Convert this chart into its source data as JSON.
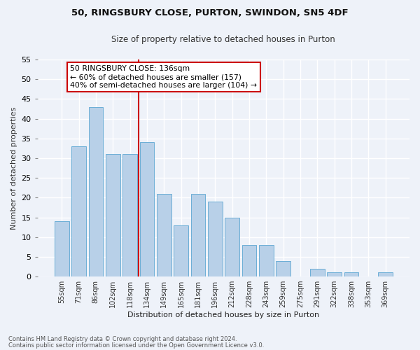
{
  "title1": "50, RINGSBURY CLOSE, PURTON, SWINDON, SN5 4DF",
  "title2": "Size of property relative to detached houses in Purton",
  "xlabel": "Distribution of detached houses by size in Purton",
  "ylabel": "Number of detached properties",
  "categories": [
    "55sqm",
    "71sqm",
    "86sqm",
    "102sqm",
    "118sqm",
    "134sqm",
    "149sqm",
    "165sqm",
    "181sqm",
    "196sqm",
    "212sqm",
    "228sqm",
    "243sqm",
    "259sqm",
    "275sqm",
    "291sqm",
    "322sqm",
    "338sqm",
    "353sqm",
    "369sqm"
  ],
  "values": [
    14,
    33,
    43,
    31,
    31,
    34,
    21,
    13,
    21,
    19,
    15,
    8,
    8,
    4,
    0,
    2,
    1,
    1,
    0,
    1
  ],
  "bar_color": "#b8d0e8",
  "bar_edge_color": "#6baed6",
  "vline_color": "#cc0000",
  "vline_pos": 5,
  "annotation_text": "50 RINGSBURY CLOSE: 136sqm\n← 60% of detached houses are smaller (157)\n40% of semi-detached houses are larger (104) →",
  "annotation_box_color": "#ffffff",
  "annotation_box_edge": "#cc0000",
  "ylim": [
    0,
    55
  ],
  "yticks": [
    0,
    5,
    10,
    15,
    20,
    25,
    30,
    35,
    40,
    45,
    50,
    55
  ],
  "footer1": "Contains HM Land Registry data © Crown copyright and database right 2024.",
  "footer2": "Contains public sector information licensed under the Open Government Licence v3.0.",
  "bg_color": "#eef2f9",
  "grid_color": "#ffffff"
}
